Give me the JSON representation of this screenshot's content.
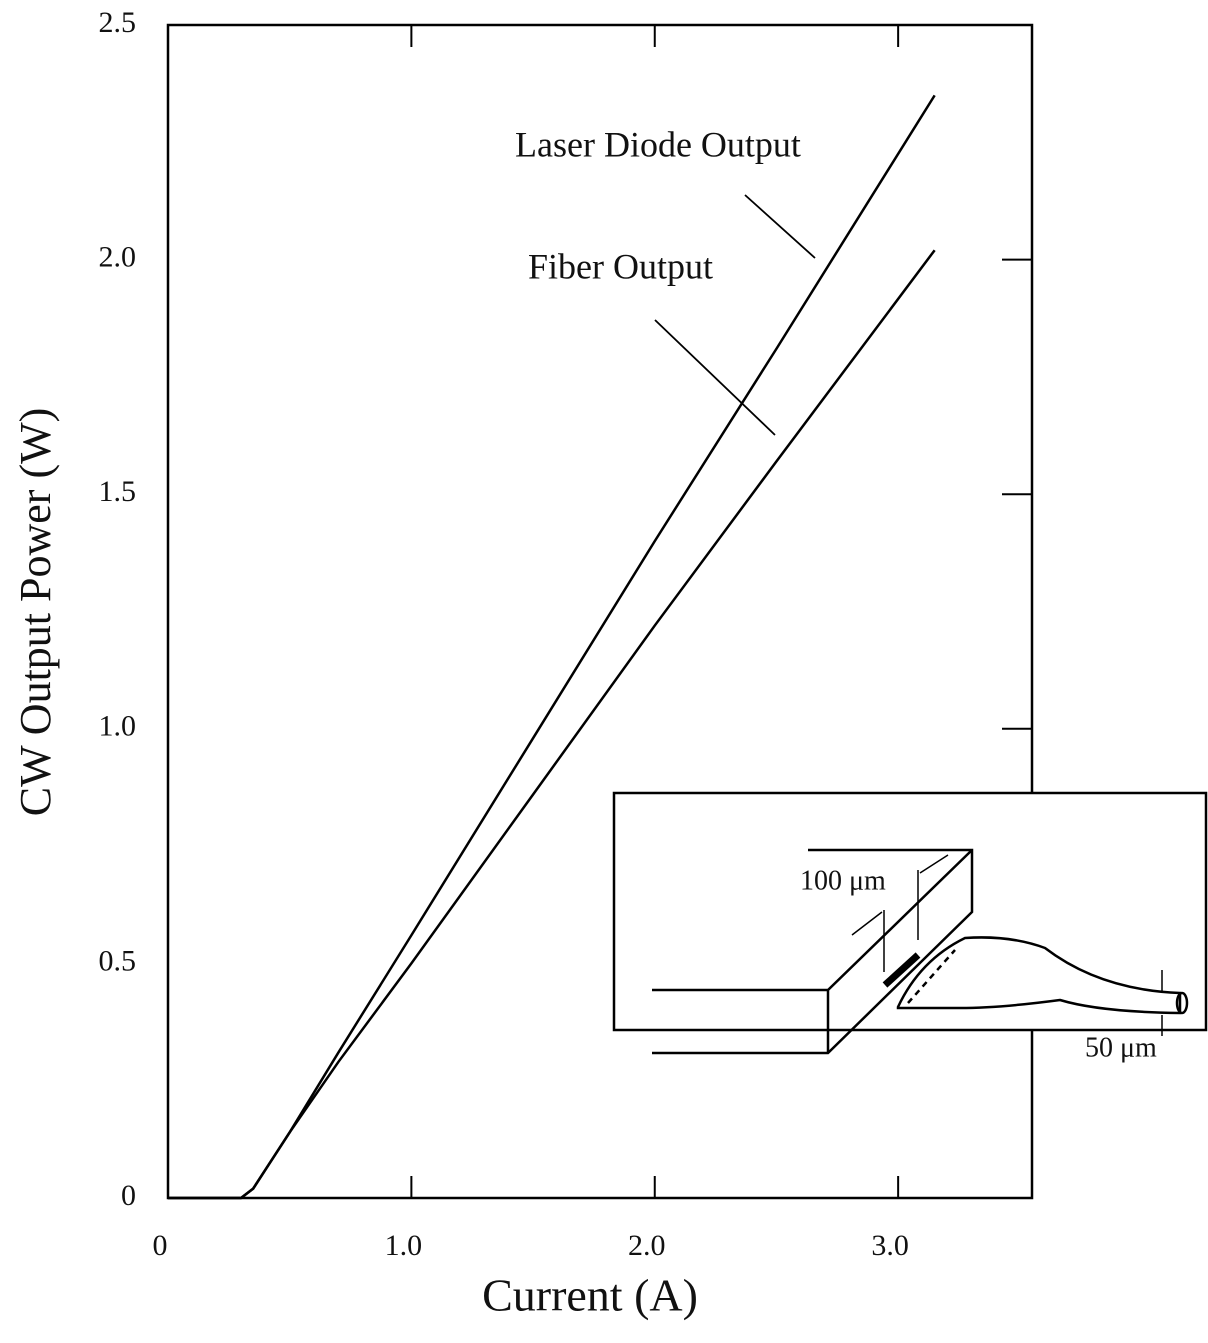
{
  "chart_data": {
    "type": "line",
    "x_label": "Current (A)",
    "y_label": "CW Output Power (W)",
    "series": [
      {
        "name": "Laser Diode Output",
        "color": "#000000",
        "x": [
          0,
          0.3,
          0.35,
          0.4,
          0.5,
          0.7,
          1.0,
          1.5,
          2.0,
          2.5,
          3.15
        ],
        "values": [
          0,
          0,
          0.02,
          0.06,
          0.14,
          0.31,
          0.56,
          0.98,
          1.4,
          1.81,
          2.35
        ]
      },
      {
        "name": "Fiber Output",
        "color": "#000000",
        "x": [
          0,
          0.3,
          0.35,
          0.4,
          0.5,
          0.7,
          1.0,
          1.5,
          2.0,
          2.5,
          3.15
        ],
        "values": [
          0,
          0,
          0.02,
          0.06,
          0.14,
          0.29,
          0.5,
          0.86,
          1.22,
          1.57,
          2.02
        ]
      }
    ],
    "xlim": [
      0,
      3.55
    ],
    "ylim": [
      0,
      2.5
    ],
    "xticks": [
      0,
      {
        "value": 1,
        "label": "1.0"
      },
      {
        "value": 2,
        "label": "2.0"
      },
      {
        "value": 3,
        "label": "3.0"
      }
    ],
    "yticks": [
      0,
      0.5,
      {
        "value": 1,
        "label": "1.0"
      },
      1.5,
      {
        "value": 2,
        "label": "2.0"
      },
      2.5
    ],
    "grid": false,
    "inset_labels": [
      "100 μm",
      "50 μm"
    ]
  }
}
